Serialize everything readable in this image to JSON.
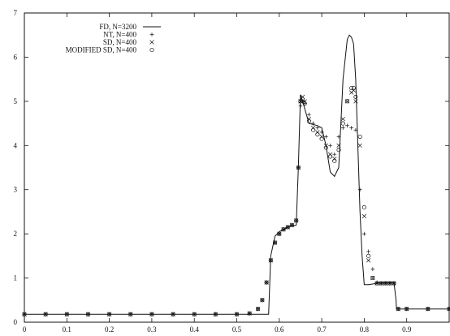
{
  "chart_data": {
    "type": "line",
    "title": "",
    "xlabel": "",
    "ylabel": "",
    "xlim": [
      0,
      1
    ],
    "ylim": [
      0,
      7
    ],
    "x_ticks": [
      0,
      0.1,
      0.2,
      0.3,
      0.4,
      0.5,
      0.6,
      0.7,
      0.8,
      0.9
    ],
    "x_tick_labels": [
      "0",
      "0.1",
      "0.2",
      "0.3",
      "0.4",
      "0.5",
      "0.6",
      "0.7",
      "0.8",
      "0.9"
    ],
    "y_ticks": [
      0,
      1,
      2,
      3,
      4,
      5,
      6,
      7
    ],
    "y_tick_labels": [
      "0",
      "1",
      "2",
      "3",
      "4",
      "5",
      "6",
      "7"
    ],
    "grid": false,
    "legend_position": "top-left",
    "colors": {
      "ink": "#111111"
    },
    "series": [
      {
        "name": "FD, N=3200",
        "marker": "line",
        "x": [
          0,
          0.1,
          0.2,
          0.3,
          0.4,
          0.5,
          0.56,
          0.575,
          0.58,
          0.59,
          0.6,
          0.62,
          0.64,
          0.645,
          0.65,
          0.655,
          0.67,
          0.69,
          0.7,
          0.71,
          0.72,
          0.73,
          0.74,
          0.75,
          0.76,
          0.765,
          0.77,
          0.775,
          0.78,
          0.79,
          0.795,
          0.8,
          0.81,
          0.83,
          0.85,
          0.87,
          0.875,
          0.876,
          0.9,
          1.0
        ],
        "y": [
          0.18,
          0.18,
          0.18,
          0.18,
          0.18,
          0.18,
          0.18,
          0.18,
          1.5,
          1.95,
          2.05,
          2.15,
          2.2,
          3.5,
          5.15,
          5.0,
          4.5,
          4.45,
          4.4,
          4.0,
          3.4,
          3.3,
          3.5,
          5.5,
          6.4,
          6.5,
          6.45,
          6.3,
          5.5,
          2.5,
          1.5,
          0.85,
          0.85,
          0.88,
          0.9,
          0.9,
          0.5,
          0.3,
          0.3,
          0.3
        ]
      },
      {
        "name": "NT, N=400",
        "marker": "plus",
        "x": [
          0,
          0.05,
          0.1,
          0.15,
          0.2,
          0.25,
          0.3,
          0.35,
          0.4,
          0.45,
          0.5,
          0.53,
          0.55,
          0.56,
          0.57,
          0.58,
          0.59,
          0.6,
          0.61,
          0.62,
          0.63,
          0.64,
          0.645,
          0.65,
          0.655,
          0.66,
          0.67,
          0.68,
          0.69,
          0.7,
          0.71,
          0.72,
          0.73,
          0.74,
          0.75,
          0.76,
          0.77,
          0.78,
          0.79,
          0.8,
          0.81,
          0.82,
          0.83,
          0.84,
          0.85,
          0.86,
          0.87,
          0.88,
          0.9,
          0.95,
          1.0
        ],
        "y": [
          0.18,
          0.18,
          0.18,
          0.18,
          0.18,
          0.18,
          0.18,
          0.18,
          0.18,
          0.18,
          0.18,
          0.2,
          0.3,
          0.5,
          0.9,
          1.4,
          1.8,
          2.0,
          2.1,
          2.15,
          2.2,
          2.3,
          3.5,
          4.9,
          5.0,
          4.95,
          4.7,
          4.5,
          4.4,
          4.3,
          4.2,
          4.0,
          3.8,
          4.2,
          4.4,
          4.45,
          4.4,
          4.35,
          3.0,
          2.0,
          1.6,
          1.2,
          0.9,
          0.88,
          0.88,
          0.88,
          0.88,
          0.3,
          0.3,
          0.3,
          0.3
        ]
      },
      {
        "name": "SD, N=400",
        "marker": "cross",
        "x": [
          0,
          0.05,
          0.1,
          0.15,
          0.2,
          0.25,
          0.3,
          0.35,
          0.4,
          0.45,
          0.5,
          0.53,
          0.55,
          0.56,
          0.57,
          0.58,
          0.59,
          0.6,
          0.61,
          0.62,
          0.63,
          0.64,
          0.645,
          0.65,
          0.655,
          0.66,
          0.67,
          0.68,
          0.69,
          0.7,
          0.71,
          0.72,
          0.73,
          0.74,
          0.75,
          0.76,
          0.77,
          0.775,
          0.78,
          0.79,
          0.8,
          0.81,
          0.82,
          0.83,
          0.84,
          0.85,
          0.86,
          0.87,
          0.88,
          0.9,
          0.95,
          1.0
        ],
        "y": [
          0.18,
          0.18,
          0.18,
          0.18,
          0.18,
          0.18,
          0.18,
          0.18,
          0.18,
          0.18,
          0.18,
          0.2,
          0.3,
          0.5,
          0.9,
          1.4,
          1.8,
          2.0,
          2.1,
          2.15,
          2.2,
          2.3,
          3.5,
          5.0,
          5.1,
          5.0,
          4.6,
          4.4,
          4.3,
          4.2,
          4.0,
          3.8,
          3.7,
          4.0,
          4.6,
          5.0,
          5.2,
          5.25,
          5.0,
          4.0,
          2.4,
          1.4,
          1.0,
          0.88,
          0.88,
          0.88,
          0.88,
          0.88,
          0.3,
          0.3,
          0.3,
          0.3
        ]
      },
      {
        "name": "MODIFIED SD, N=400",
        "marker": "circle",
        "x": [
          0,
          0.05,
          0.1,
          0.15,
          0.2,
          0.25,
          0.3,
          0.35,
          0.4,
          0.45,
          0.5,
          0.53,
          0.55,
          0.56,
          0.57,
          0.58,
          0.59,
          0.6,
          0.61,
          0.62,
          0.63,
          0.64,
          0.645,
          0.65,
          0.655,
          0.66,
          0.67,
          0.68,
          0.69,
          0.7,
          0.71,
          0.72,
          0.73,
          0.74,
          0.75,
          0.76,
          0.77,
          0.775,
          0.78,
          0.79,
          0.8,
          0.81,
          0.82,
          0.83,
          0.84,
          0.85,
          0.86,
          0.87,
          0.88,
          0.9,
          0.95,
          1.0
        ],
        "y": [
          0.18,
          0.18,
          0.18,
          0.18,
          0.18,
          0.18,
          0.18,
          0.18,
          0.18,
          0.18,
          0.18,
          0.2,
          0.3,
          0.5,
          0.9,
          1.4,
          1.8,
          2.0,
          2.1,
          2.15,
          2.2,
          2.3,
          3.5,
          5.0,
          5.05,
          4.95,
          4.55,
          4.35,
          4.25,
          4.15,
          3.95,
          3.75,
          3.65,
          3.9,
          4.5,
          5.0,
          5.3,
          5.3,
          5.1,
          4.2,
          2.6,
          1.5,
          1.0,
          0.88,
          0.88,
          0.88,
          0.88,
          0.88,
          0.3,
          0.3,
          0.3,
          0.3
        ]
      }
    ]
  }
}
